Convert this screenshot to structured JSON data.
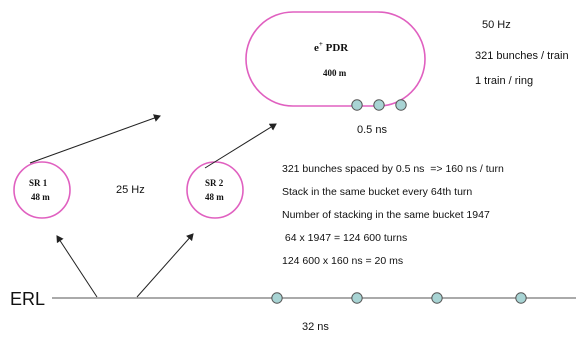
{
  "pdr": {
    "title": "e",
    "title_sup": "+",
    "title_rest": " PDR",
    "length": "400 m",
    "bunch_spacing": "0.5 ns"
  },
  "info_top": {
    "frequency": "50 Hz",
    "bunches": "321 bunches / train",
    "trains": "1 train / ring"
  },
  "sr1": {
    "name": "SR 1",
    "length": "48 m"
  },
  "sr2": {
    "name": "SR 2",
    "length": "48 m"
  },
  "injection_rate": "25 Hz",
  "notes": [
    "321 bunches spaced by 0.5 ns  => 160 ns / turn",
    "Stack in the same bucket every 64th turn",
    "Number of stacking in the same bucket 1947",
    " 64 x 1947 = 124 600 turns",
    "124 600 x 160 ns = 20 ms"
  ],
  "erl": {
    "label": "ERL",
    "bunch_spacing": "32 ns"
  },
  "colors": {
    "ring": "#e060c0",
    "bunch_fill": "#a8d4d4",
    "bunch_stroke": "#555555",
    "line": "#555555",
    "text": "#111111"
  }
}
